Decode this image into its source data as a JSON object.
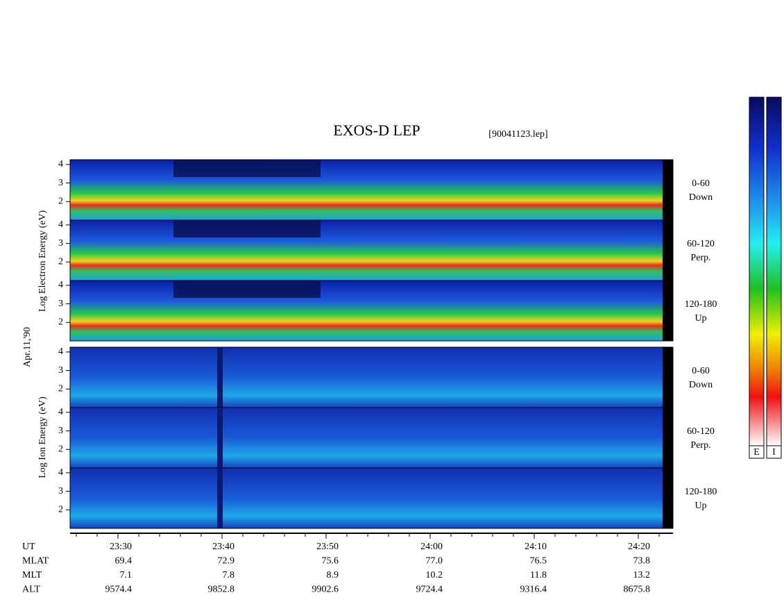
{
  "header": {
    "title": "EXOS-D LEP",
    "file": "[90041123.lep]"
  },
  "left_labels": {
    "electron": "Log Electron Energy (eV)",
    "date": "Apr.11,'90",
    "ion": "Log Ion Energy (eV)"
  },
  "panels": [
    {
      "yticks": [
        4,
        3,
        2
      ],
      "label": [
        "0-60",
        "Down"
      ]
    },
    {
      "yticks": [
        4,
        3,
        2
      ],
      "label": [
        "60-120",
        "Perp."
      ]
    },
    {
      "yticks": [
        4,
        3,
        2
      ],
      "label": [
        "120-180",
        "Up"
      ]
    },
    {
      "yticks": [
        4,
        3,
        2
      ],
      "label": [
        "0-60",
        "Down"
      ]
    },
    {
      "yticks": [
        4,
        3,
        2
      ],
      "label": [
        "60-120",
        "Perp."
      ]
    },
    {
      "yticks": [
        4,
        3,
        2
      ],
      "label": [
        "120-180",
        "Up"
      ]
    }
  ],
  "time_axis": {
    "rows": [
      {
        "label": "UT",
        "values": [
          "23:30",
          "23:40",
          "23:50",
          "24:00",
          "24:10",
          "24:20"
        ]
      },
      {
        "label": "MLAT",
        "values": [
          "69.4",
          "72.9",
          "75.6",
          "77.0",
          "76.5",
          "73.8"
        ]
      },
      {
        "label": "MLT",
        "values": [
          "7.1",
          "7.8",
          "8.9",
          "10.2",
          "11.8",
          "13.2"
        ]
      },
      {
        "label": "ALT",
        "values": [
          "9574.4",
          "9852.8",
          "9902.6",
          "9724.4",
          "9316.4",
          "8675.8"
        ]
      }
    ]
  },
  "colorbars": [
    "E",
    "I"
  ]
}
